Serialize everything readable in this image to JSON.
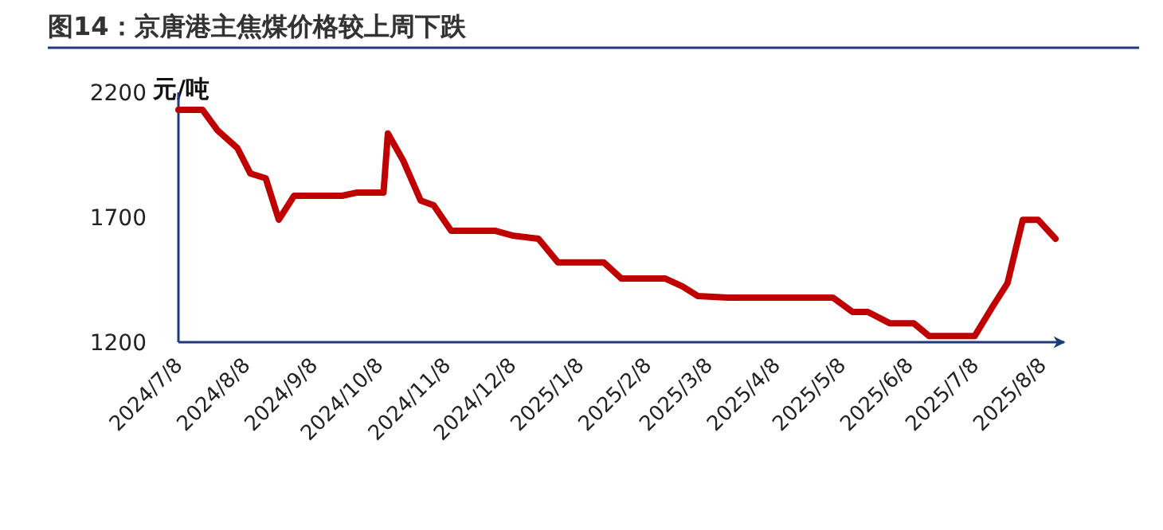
{
  "chart_data": {
    "type": "line",
    "title": "图14：京唐港主焦煤价格较上周下跌",
    "ylabel": "元/吨",
    "x": [
      "2024-07-08",
      "2024-07-19",
      "2024-07-26",
      "2024-08-04",
      "2024-08-10",
      "2024-08-17",
      "2024-08-23",
      "2024-08-30",
      "2024-09-21",
      "2024-09-28",
      "2024-10-10",
      "2024-10-12",
      "2024-10-19",
      "2024-10-27",
      "2024-11-02",
      "2024-11-10",
      "2024-11-30",
      "2024-12-08",
      "2024-12-20",
      "2024-12-29",
      "2025-01-19",
      "2025-01-27",
      "2025-02-16",
      "2025-02-24",
      "2025-03-03",
      "2025-03-17",
      "2025-05-04",
      "2025-05-13",
      "2025-05-20",
      "2025-05-30",
      "2025-06-10",
      "2025-06-17",
      "2025-07-08",
      "2025-07-16",
      "2025-07-23",
      "2025-07-30",
      "2025-08-06",
      "2025-08-14"
    ],
    "series": [
      {
        "color": "#c00000",
        "values": [
          2130,
          2130,
          2047,
          1977,
          1875,
          1856,
          1690,
          1786,
          1786,
          1799,
          1799,
          2035,
          1927,
          1767,
          1748,
          1646,
          1646,
          1627,
          1614,
          1519,
          1519,
          1455,
          1455,
          1423,
          1385,
          1378,
          1378,
          1321,
          1321,
          1276,
          1276,
          1225,
          1225,
          1340,
          1436,
          1690,
          1690,
          1614
        ]
      }
    ],
    "xlim": [
      "2024-07-08",
      "2025-08-18"
    ],
    "xticks": [
      {
        "value": "2024-07-08",
        "label": "2024/7/8"
      },
      {
        "value": "2024-08-08",
        "label": "2024/8/8"
      },
      {
        "value": "2024-09-08",
        "label": "2024/9/8"
      },
      {
        "value": "2024-10-08",
        "label": "2024/10/8"
      },
      {
        "value": "2024-11-08",
        "label": "2024/11/8"
      },
      {
        "value": "2024-12-08",
        "label": "2024/12/8"
      },
      {
        "value": "2025-01-08",
        "label": "2025/1/8"
      },
      {
        "value": "2025-02-08",
        "label": "2025/2/8"
      },
      {
        "value": "2025-03-08",
        "label": "2025/3/8"
      },
      {
        "value": "2025-04-08",
        "label": "2025/4/8"
      },
      {
        "value": "2025-05-08",
        "label": "2025/5/8"
      },
      {
        "value": "2025-06-08",
        "label": "2025/6/8"
      },
      {
        "value": "2025-07-08",
        "label": "2025/7/8"
      },
      {
        "value": "2025-08-08",
        "label": "2025/8/8"
      }
    ],
    "ylim": [
      1200,
      2200
    ],
    "yticks": [
      1200,
      1700,
      2200
    ],
    "grid": false,
    "marker": "none",
    "line_style": "solid"
  }
}
